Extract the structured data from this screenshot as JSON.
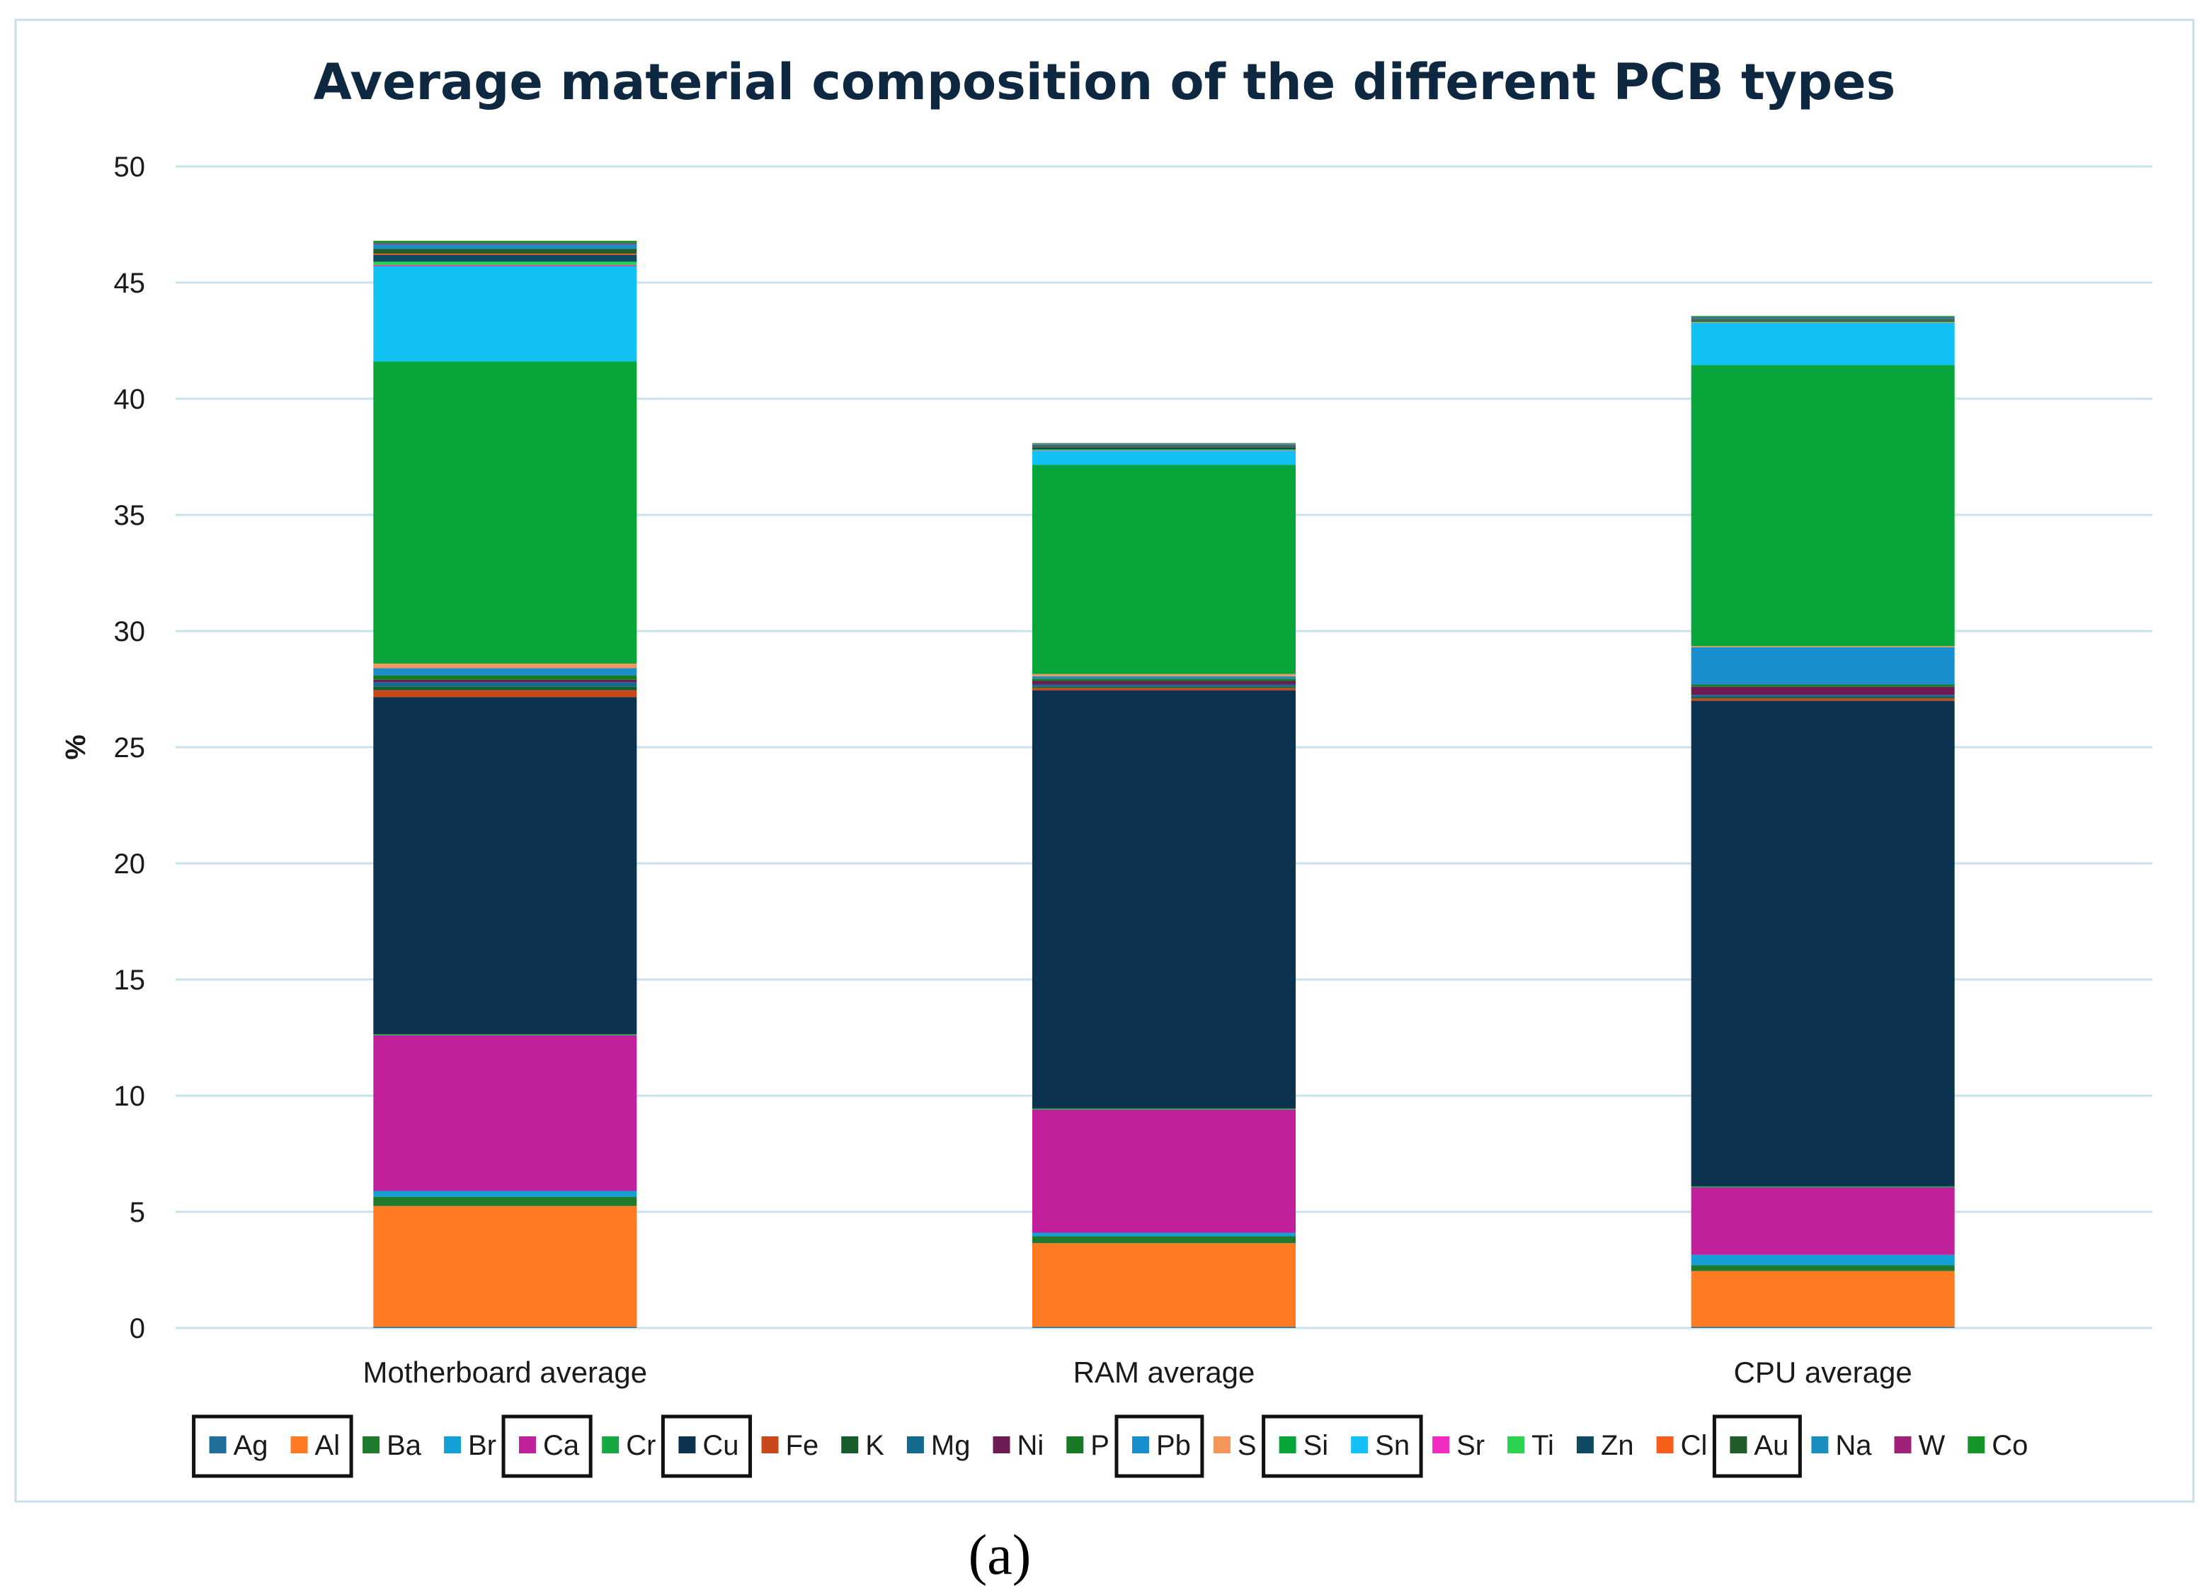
{
  "caption": "(a)",
  "chart_data": {
    "type": "bar",
    "stacked": true,
    "title": "Average material composition of the different PCB types",
    "xlabel": "",
    "ylabel": "%",
    "ylim": [
      0,
      50
    ],
    "yticks": [
      0,
      5,
      10,
      15,
      20,
      25,
      30,
      35,
      40,
      45,
      50
    ],
    "grid": true,
    "legend_position": "bottom",
    "categories": [
      "Motherboard average",
      "RAM average",
      "CPU average"
    ],
    "series": [
      {
        "name": "Ag",
        "color": "#1f6f99",
        "values": [
          0.05,
          0.05,
          0.05
        ],
        "highlighted": true
      },
      {
        "name": "Al",
        "color": "#ff7a22",
        "values": [
          5.2,
          3.6,
          2.4
        ],
        "highlighted": true
      },
      {
        "name": "Ba",
        "color": "#1f7a2e",
        "values": [
          0.4,
          0.3,
          0.25
        ]
      },
      {
        "name": "Br",
        "color": "#149fd6",
        "values": [
          0.25,
          0.15,
          0.45
        ]
      },
      {
        "name": "Ca",
        "color": "#c2209a",
        "values": [
          6.7,
          5.3,
          2.9
        ],
        "highlighted": true
      },
      {
        "name": "Cr",
        "color": "#17a844",
        "values": [
          0.05,
          0.05,
          0.05
        ]
      },
      {
        "name": "Cu",
        "color": "#0b3350",
        "values": [
          14.5,
          18.0,
          20.9
        ],
        "highlighted": true
      },
      {
        "name": "Fe",
        "color": "#c9471b",
        "values": [
          0.3,
          0.1,
          0.1
        ]
      },
      {
        "name": "K",
        "color": "#175d2b",
        "values": [
          0.15,
          0.05,
          0.05
        ]
      },
      {
        "name": "Mg",
        "color": "#136a8e",
        "values": [
          0.2,
          0.1,
          0.1
        ]
      },
      {
        "name": "Ni",
        "color": "#6e1a55",
        "values": [
          0.1,
          0.15,
          0.35
        ]
      },
      {
        "name": "P",
        "color": "#197a26",
        "values": [
          0.2,
          0.1,
          0.1
        ]
      },
      {
        "name": "Pb",
        "color": "#198fcf",
        "values": [
          0.3,
          0.1,
          1.6
        ],
        "highlighted": true
      },
      {
        "name": "S",
        "color": "#f49659",
        "values": [
          0.2,
          0.1,
          0.05
        ]
      },
      {
        "name": "Si",
        "color": "#07a53a",
        "values": [
          13.0,
          9.0,
          12.1
        ],
        "highlighted": true
      },
      {
        "name": "Sn",
        "color": "#12c1f3",
        "values": [
          4.1,
          0.6,
          1.8
        ],
        "highlighted": true
      },
      {
        "name": "Sr",
        "color": "#f22bc2",
        "values": [
          0.05,
          0.02,
          0.02
        ]
      },
      {
        "name": "Ti",
        "color": "#2bd352",
        "values": [
          0.15,
          0.05,
          0.05
        ]
      },
      {
        "name": "Zn",
        "color": "#0f4a63",
        "values": [
          0.3,
          0.1,
          0.05
        ]
      },
      {
        "name": "Cl",
        "color": "#f55f1a",
        "values": [
          0.05,
          0.02,
          0.02
        ]
      },
      {
        "name": "Au",
        "color": "#215c2a",
        "values": [
          0.2,
          0.05,
          0.05
        ],
        "highlighted": true
      },
      {
        "name": "Na",
        "color": "#1c8dc0",
        "values": [
          0.2,
          0.05,
          0.05
        ]
      },
      {
        "name": "W",
        "color": "#a02178",
        "values": [
          0.05,
          0.02,
          0.02
        ]
      },
      {
        "name": "Co",
        "color": "#15952c",
        "values": [
          0.1,
          0.03,
          0.05
        ]
      }
    ],
    "highlight_groups": [
      [
        "Ag",
        "Al"
      ],
      [
        "Ca"
      ],
      [
        "Cu"
      ],
      [
        "Pb"
      ],
      [
        "Si",
        "Sn"
      ],
      [
        "Au"
      ]
    ]
  }
}
